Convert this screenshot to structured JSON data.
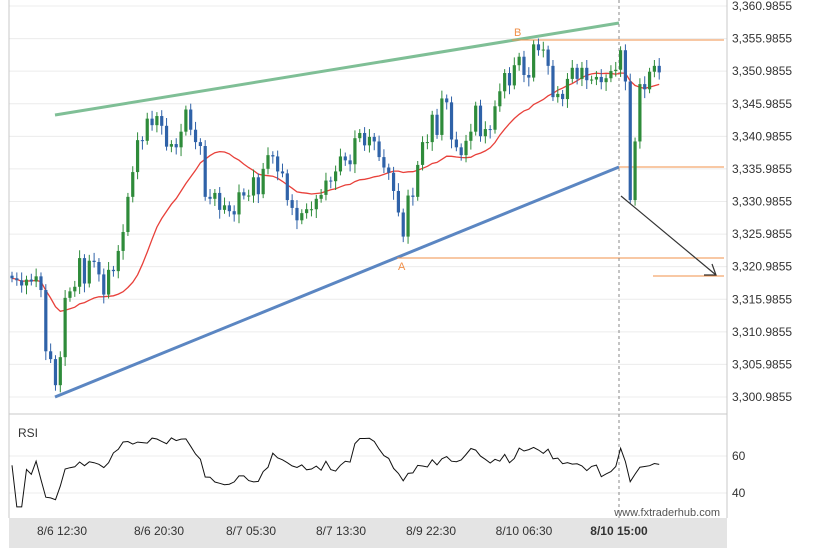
{
  "chart_data": {
    "type": "candlestick",
    "price_axis": {
      "ticks": [
        "3,360.9855",
        "3,355.9855",
        "3,350.9855",
        "3,345.9855",
        "3,340.9855",
        "3,335.9855",
        "3,330.9855",
        "3,325.9855",
        "3,320.9855",
        "3,315.9855",
        "3,310.9855",
        "3,305.9855",
        "3,300.9855"
      ],
      "ylim": [
        3297.5,
        3361.5
      ]
    },
    "rsi_axis": {
      "ticks": [
        "60",
        "40"
      ],
      "label": "RSI",
      "ylim": [
        30,
        82
      ]
    },
    "x_labels": [
      "8/6 12:30",
      "8/6 20:30",
      "8/7 05:30",
      "8/7 13:30",
      "8/9 22:30",
      "8/10 06:30",
      "8/10 15:00"
    ],
    "watermark": "www.fxtraderhub.com",
    "points": {
      "A": "A",
      "B": "B"
    },
    "candles_close": [
      3319.2,
      3318.9,
      3318.1,
      3319.0,
      3318.7,
      3319.5,
      3317.4,
      3308.0,
      3306.8,
      3302.8,
      3307.1,
      3316.2,
      3317.2,
      3317.9,
      3322.3,
      3318.4,
      3321.9,
      3321.7,
      3319.8,
      3316.7,
      3320.5,
      3320.3,
      3323.4,
      3326.3,
      3331.7,
      3335.5,
      3340.4,
      3340.3,
      3343.7,
      3342.7,
      3344.1,
      3342.6,
      3339.4,
      3339.8,
      3339.3,
      3341.7,
      3345.1,
      3342.0,
      3340.1,
      3339.5,
      3331.7,
      3331.4,
      3332.3,
      3329.7,
      3330.4,
      3329.5,
      3329.0,
      3332.4,
      3331.9,
      3331.9,
      3334.7,
      3332.1,
      3336.0,
      3338.1,
      3337.9,
      3335.6,
      3335.3,
      3331.2,
      3330.0,
      3328.1,
      3329.2,
      3329.8,
      3329.8,
      3331.4,
      3332.0,
      3334.2,
      3334.1,
      3335.6,
      3337.9,
      3337.3,
      3336.7,
      3340.7,
      3341.5,
      3339.6,
      3340.9,
      3340.2,
      3337.8,
      3336.2,
      3335.4,
      3332.6,
      3329.3,
      3325.6,
      3331.9,
      3331.7,
      3336.6,
      3340.1,
      3340.1,
      3344.3,
      3341.2,
      3346.8,
      3346.2,
      3340.5,
      3339.3,
      3338.1,
      3340.3,
      3341.7,
      3345.7,
      3341.0,
      3342.1,
      3342.0,
      3345.6,
      3347.9,
      3350.7,
      3348.8,
      3351.9,
      3353.2,
      3350.4,
      3350.0,
      3355.1,
      3354.2,
      3354.3,
      3351.8,
      3347.0,
      3347.5,
      3346.7,
      3349.8,
      3351.5,
      3349.8,
      3351.5,
      3349.6,
      3349.7,
      3350.1,
      3349.3,
      3349.9,
      3351.0,
      3351.2,
      3354.2,
      3349.4,
      3331.2,
      3340.2,
      3349.0,
      3348.2,
      3350.9,
      3351.8,
      3350.8
    ]
  }
}
